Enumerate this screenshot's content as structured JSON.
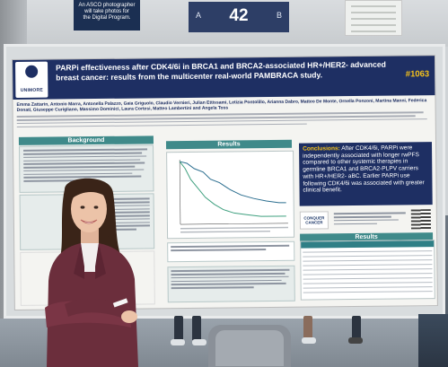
{
  "photo_sign": {
    "line1": "An ASCO photographer",
    "line2": "will take photos for",
    "line3": "the Digital Program."
  },
  "board_sign": {
    "left": "A",
    "number": "42",
    "right": "B"
  },
  "poster": {
    "logo_text": "UNIMORE",
    "title": "PARPi effectiveness after CDK4/6i in BRCA1 and BRCA2-associated HR+/HER2- advanced breast cancer: results from the multicenter real-world PAMBRACA study.",
    "id": "#1063",
    "authors": "Emma Zattarin, Antonio Marra, Antonella Palazzo, Gaia Griguolo, Claudio Vernieri, Julian Ettissami, Letizia Pontolillo, Arianna Dabro, Matteo De Monte, Ornella Ponzoni, Martina Manni, Federica Donati, Giuseppe Curigliano, Massimo Dominici, Laura Cortesi, Matteo Lambertini and Angela Toss",
    "sections": {
      "background": "Background",
      "results": "Results",
      "results2": "Results"
    },
    "conclusions_label": "Conclusions:",
    "conclusions_text": "After CDK4/6i, PARPi were independently associated with longer rwPFS compared to other systemic therapies in germline BRCA1 and BRCA2-PLPV carriers with HR+/HER2- aBC. Earlier PARPi use following CDK4/6i was associated with greater clinical benefit.",
    "sponsor": "CONQUER CANCER"
  }
}
